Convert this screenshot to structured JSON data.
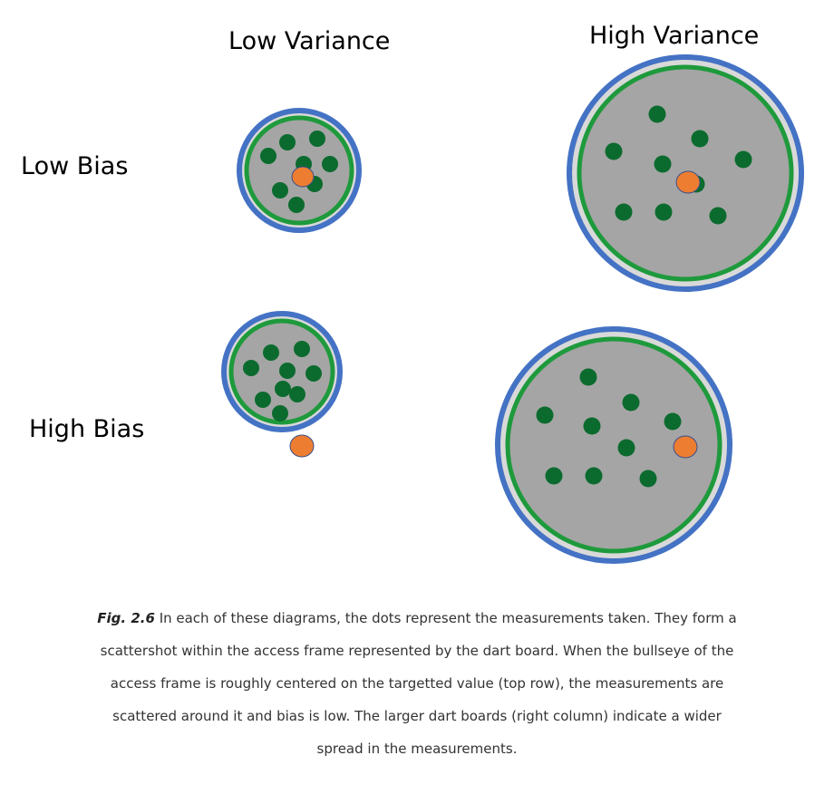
{
  "columns": [
    "Low Variance",
    "High Variance"
  ],
  "rows": [
    "Low Bias",
    "High Bias"
  ],
  "colors": {
    "outer_ring": "#4472c4",
    "board_fill": "#a5a5a5",
    "light_band": "#d9d9d9",
    "inner_ring": "#1e9a3c",
    "measurement_dot": "#0b6b2e",
    "target_dot": "#ed7d31"
  },
  "caption": {
    "fig_label": "Fig. 2.6",
    "text": " In each of these diagrams, the dots represent the measurements taken. They form a scattershot within the access frame represented by the dart board. When the bullseye of the access frame is roughly centered on the targetted value (top row), the measurements are scattered around it and bias is low. The larger dart boards (right column) indicate a wider spread in the measurements."
  }
}
